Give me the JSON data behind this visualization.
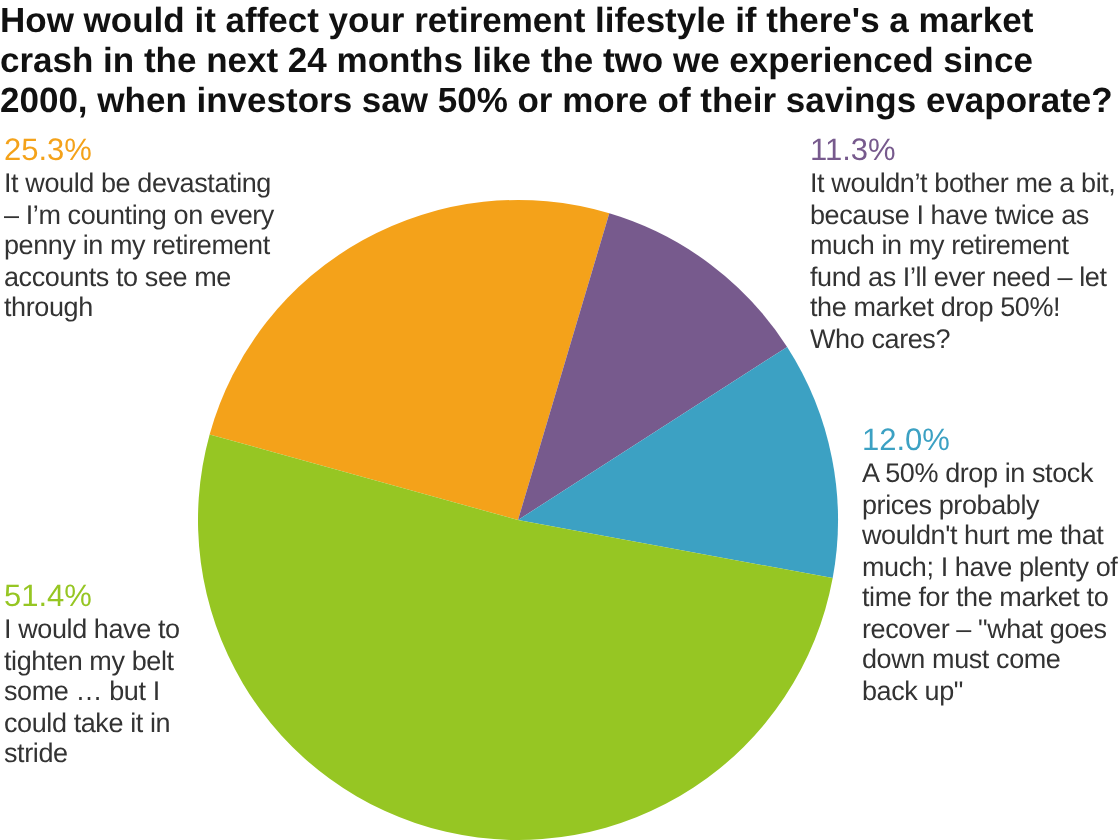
{
  "chart_data": {
    "type": "pie",
    "title": "How would it affect your retirement lifestyle if there's a market crash in the next 24 months like the two we experienced since 2000, when investors saw 50% or more of their savings evaporate?",
    "categories": [
      "It would be devastating – I’m counting on every penny in my retirement accounts to see me through",
      "It wouldn’t bother me a bit, because I have twice as much in my retirement fund as I’ll ever need – let the market drop 50%! Who cares?",
      "A 50% drop in stock prices probably wouldn't hurt me that much; I have plenty of time for the market to recover – \"what goes down must come back up\"",
      "I would have to tighten my belt some … but I could take it in stride"
    ],
    "values": [
      25.3,
      11.3,
      12.0,
      51.4
    ],
    "colors": [
      "#f4a21a",
      "#775a8d",
      "#3ca1c3",
      "#96c623"
    ],
    "value_labels": [
      "25.3%",
      "11.3%",
      "12.0%",
      "51.4%"
    ]
  }
}
